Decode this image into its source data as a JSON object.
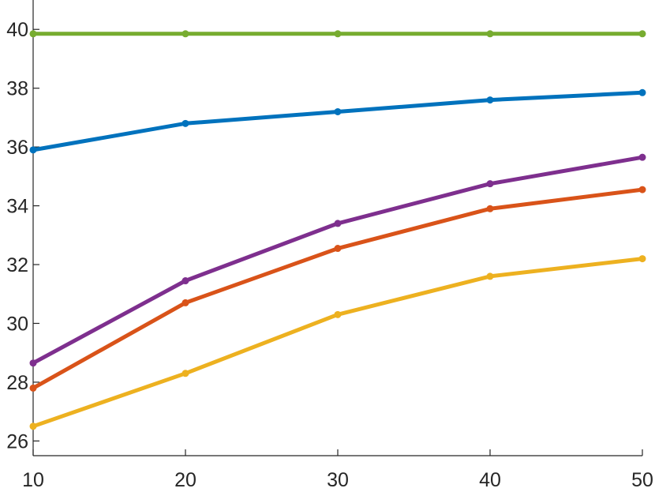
{
  "chart_data": {
    "type": "line",
    "title": "",
    "xlabel": "",
    "ylabel": "",
    "x": [
      10,
      20,
      30,
      40,
      50
    ],
    "xlim": [
      10,
      50
    ],
    "ylim": [
      25.5,
      41
    ],
    "xticks": [
      10,
      20,
      30,
      40,
      50
    ],
    "yticks": [
      26,
      28,
      30,
      32,
      34,
      36,
      38,
      40
    ],
    "grid": false,
    "legend": "none",
    "series": [
      {
        "color": "#77AC30",
        "values": [
          39.85,
          39.85,
          39.85,
          39.85,
          39.85
        ]
      },
      {
        "color": "#0072BD",
        "values": [
          35.9,
          36.8,
          37.2,
          37.6,
          37.85
        ]
      },
      {
        "color": "#7E2F8E",
        "values": [
          28.65,
          31.45,
          33.4,
          34.75,
          35.65
        ]
      },
      {
        "color": "#D95319",
        "values": [
          27.8,
          30.7,
          32.55,
          33.9,
          34.55
        ]
      },
      {
        "color": "#EDB120",
        "values": [
          26.5,
          28.3,
          30.3,
          31.6,
          32.2
        ]
      }
    ]
  }
}
